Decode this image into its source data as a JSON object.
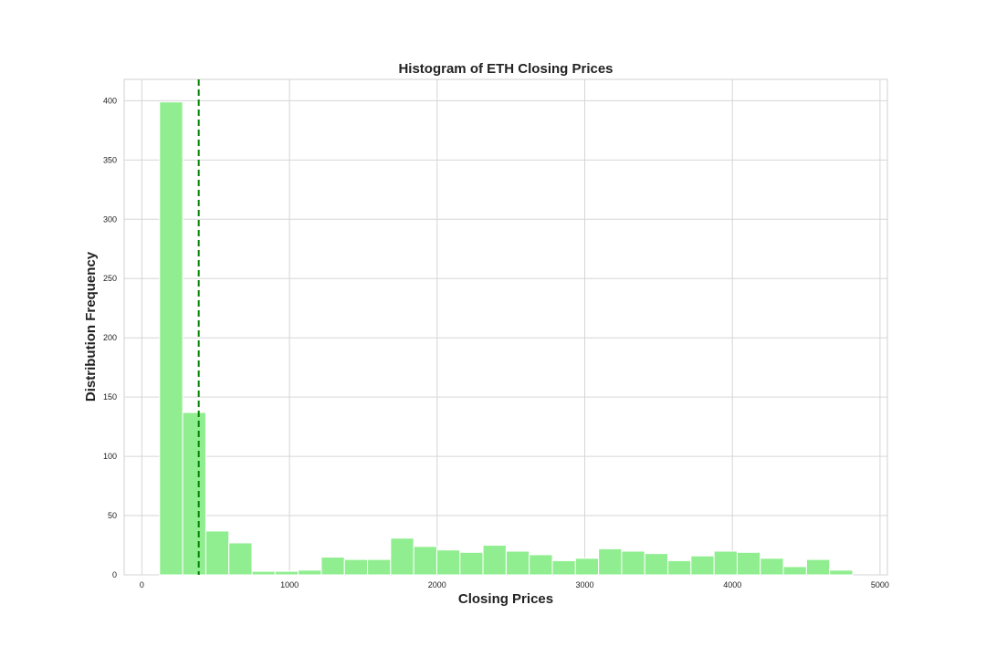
{
  "chart_data": {
    "type": "bar",
    "title": "Histogram of ETH Closing Prices",
    "xlabel": "Closing Prices",
    "ylabel": "Distribution Frequency",
    "xlim": [
      -120,
      5050
    ],
    "ylim": [
      0,
      418
    ],
    "x_ticks": [
      0,
      1000,
      2000,
      3000,
      4000,
      5000
    ],
    "y_ticks": [
      0,
      50,
      100,
      150,
      200,
      250,
      300,
      350,
      400
    ],
    "grid": true,
    "bar_color": "#90ee90",
    "line_color": "#008000",
    "bin_start": 120,
    "bin_width": 156.5,
    "values": [
      399,
      137,
      37,
      27,
      3,
      3,
      4,
      15,
      13,
      13,
      31,
      24,
      21,
      19,
      25,
      20,
      17,
      12,
      14,
      22,
      20,
      18,
      12,
      16,
      20,
      19,
      14,
      7,
      13,
      4
    ],
    "reference_line": {
      "x": 385,
      "style": "dashed"
    }
  }
}
